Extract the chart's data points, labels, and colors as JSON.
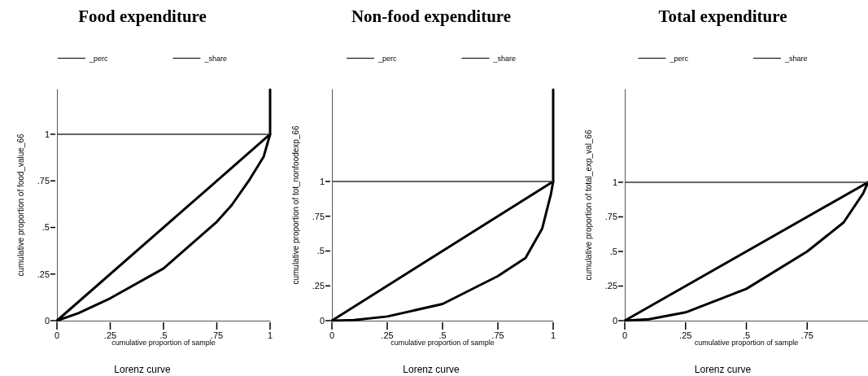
{
  "chart_data": [
    {
      "type": "line",
      "title": "Food expenditure",
      "xlabel": "cumulative proportion of sample",
      "ylabel": "cumulative proportion of food_value_66",
      "annotations": [
        "Lorenz curve"
      ],
      "legend": "top",
      "grid": false,
      "marker": "none",
      "line_style": "solid",
      "xlim": [
        0,
        1
      ],
      "xticks": [
        {
          "value": 0,
          "label": "0"
        },
        {
          "value": 0.25,
          "label": ".25"
        },
        {
          "value": 0.5,
          "label": ".5"
        },
        {
          "value": 0.75,
          "label": ".75"
        },
        {
          "value": 1,
          "label": "1"
        }
      ],
      "ylim": [
        0,
        1.24
      ],
      "yticks": [
        {
          "value": 0,
          "label": "0"
        },
        {
          "value": 0.25,
          "label": ".25"
        },
        {
          "value": 0.5,
          "label": ".5"
        },
        {
          "value": 0.75,
          "label": ".75"
        },
        {
          "value": 1,
          "label": "1"
        }
      ],
      "ref_lines": [
        {
          "axis": "y",
          "value": 1,
          "color": "#333333"
        }
      ],
      "series": [
        {
          "name": "_perc",
          "color": "#000000",
          "x": [
            0,
            1
          ],
          "values": [
            0,
            1
          ]
        },
        {
          "name": "_share",
          "color": "#000000",
          "x": [
            0,
            0.1,
            0.25,
            0.5,
            0.75,
            0.82,
            0.9,
            0.97,
            1,
            1
          ],
          "values": [
            0,
            0.04,
            0.12,
            0.28,
            0.53,
            0.62,
            0.75,
            0.88,
            1,
            1.24
          ]
        }
      ]
    },
    {
      "type": "line",
      "title": "Non-food expenditure",
      "xlabel": "cumulative proportion of sample",
      "ylabel": "cumulative proportion of tot_nonfoodexp_66",
      "annotations": [
        "Lorenz curve"
      ],
      "legend": "top",
      "grid": false,
      "marker": "none",
      "line_style": "solid",
      "xlim": [
        0,
        1
      ],
      "xticks": [
        {
          "value": 0,
          "label": "0"
        },
        {
          "value": 0.25,
          "label": ".25"
        },
        {
          "value": 0.5,
          "label": ".5"
        },
        {
          "value": 0.75,
          "label": ".75"
        },
        {
          "value": 1,
          "label": "1"
        }
      ],
      "ylim": [
        0,
        1.66
      ],
      "yticks": [
        {
          "value": 0,
          "label": "0"
        },
        {
          "value": 0.25,
          "label": ".25"
        },
        {
          "value": 0.5,
          "label": ".5"
        },
        {
          "value": 0.75,
          "label": ".75"
        },
        {
          "value": 1,
          "label": "1"
        }
      ],
      "ref_lines": [
        {
          "axis": "y",
          "value": 1,
          "color": "#333333"
        }
      ],
      "series": [
        {
          "name": "_perc",
          "color": "#000000",
          "x": [
            0,
            1
          ],
          "values": [
            0,
            1
          ]
        },
        {
          "name": "_share",
          "color": "#000000",
          "x": [
            0,
            0.1,
            0.25,
            0.5,
            0.75,
            0.875,
            0.95,
            0.99,
            1,
            1
          ],
          "values": [
            0,
            0.005,
            0.03,
            0.12,
            0.32,
            0.45,
            0.66,
            0.91,
            1,
            1.66
          ]
        }
      ]
    },
    {
      "type": "line",
      "title": "Total expenditure",
      "xlabel": "cumulative proportion of sample",
      "ylabel": "cumulative proportion of total_exp_val_66",
      "annotations": [
        "Lorenz curve"
      ],
      "legend": "top",
      "grid": false,
      "marker": "none",
      "line_style": "solid",
      "xlim": [
        0,
        1
      ],
      "xticks": [
        {
          "value": 0,
          "label": "0"
        },
        {
          "value": 0.25,
          "label": ".25"
        },
        {
          "value": 0.5,
          "label": ".5"
        },
        {
          "value": 0.75,
          "label": ".75"
        }
      ],
      "ylim": [
        0,
        1.67
      ],
      "yticks": [
        {
          "value": 0,
          "label": "0"
        },
        {
          "value": 0.25,
          "label": ".25"
        },
        {
          "value": 0.5,
          "label": ".5"
        },
        {
          "value": 0.75,
          "label": ".75"
        },
        {
          "value": 1,
          "label": "1"
        }
      ],
      "ref_lines": [
        {
          "axis": "y",
          "value": 1,
          "color": "#333333"
        }
      ],
      "series": [
        {
          "name": "_perc",
          "color": "#000000",
          "x": [
            0,
            1
          ],
          "values": [
            0,
            1
          ]
        },
        {
          "name": "_share",
          "color": "#000000",
          "x": [
            0,
            0.1,
            0.25,
            0.5,
            0.75,
            0.9,
            0.98,
            1
          ],
          "values": [
            0,
            0.01,
            0.06,
            0.23,
            0.5,
            0.71,
            0.92,
            1
          ]
        }
      ]
    }
  ]
}
